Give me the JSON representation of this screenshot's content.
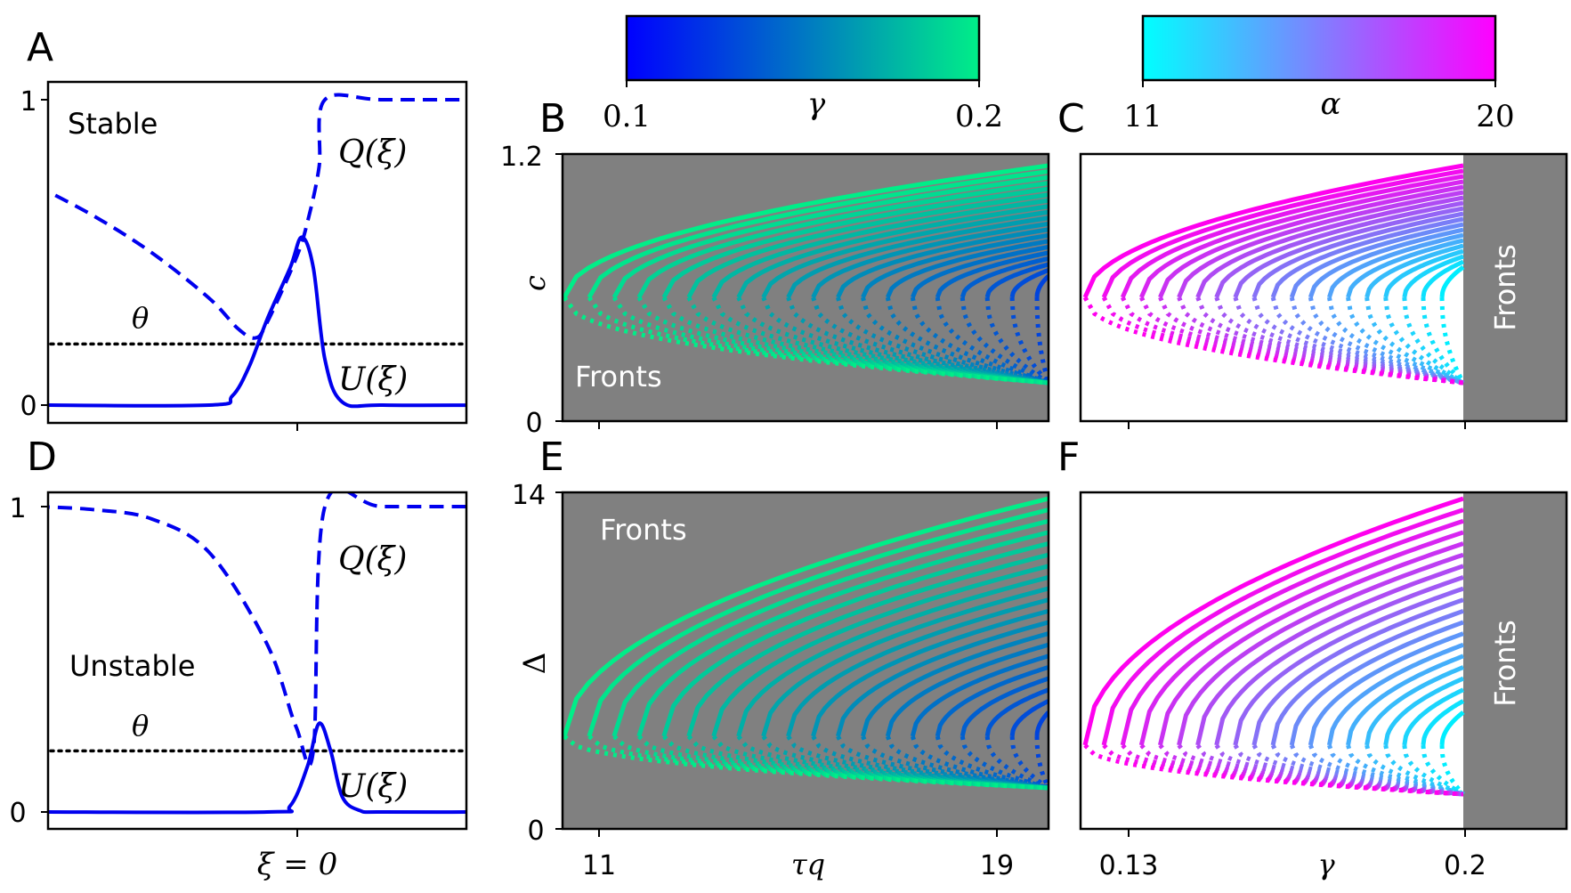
{
  "panel_letters": {
    "A": "A",
    "B": "B",
    "C": "C",
    "D": "D",
    "E": "E",
    "F": "F"
  },
  "colorbars": {
    "gamma": {
      "label": "γ",
      "min": "0.1",
      "max": "0.2",
      "colors": [
        "#0000ff",
        "#00ee88"
      ]
    },
    "alpha": {
      "label": "α",
      "min": "11",
      "max": "20",
      "colors": [
        "#00ffff",
        "#ff00ff"
      ]
    }
  },
  "chart_data": [
    {
      "id": "A",
      "type": "line",
      "annotation": "Stable",
      "ylim": [
        0,
        1
      ],
      "yticks": [
        "0",
        "1"
      ],
      "xticks": [
        "ξ = 0"
      ],
      "threshold": {
        "label": "θ",
        "y": 0.2
      },
      "series": [
        {
          "name": "Q(ξ)",
          "style": "dashed",
          "color": "#0000ee",
          "x": [
            -5,
            -4,
            -3,
            -2,
            -1.5,
            -1.2,
            -1,
            -0.5,
            -0.3,
            -0.1,
            0,
            1,
            3
          ],
          "y": [
            0.72,
            0.62,
            0.5,
            0.35,
            0.25,
            0.22,
            0.27,
            0.48,
            0.6,
            0.78,
            1.0,
            1.0,
            1.0
          ]
        },
        {
          "name": "U(ξ)",
          "style": "solid",
          "color": "#0000ee",
          "x": [
            -5,
            -2,
            -1.6,
            -1.3,
            -1,
            -0.6,
            -0.4,
            -0.2,
            0,
            0.3,
            1,
            3
          ],
          "y": [
            0,
            0,
            0.03,
            0.13,
            0.28,
            0.45,
            0.55,
            0.45,
            0.15,
            0.01,
            0,
            0
          ]
        }
      ]
    },
    {
      "id": "D",
      "type": "line",
      "annotation": "Unstable",
      "ylim": [
        0,
        1
      ],
      "yticks": [
        "0",
        "1"
      ],
      "xticks": [
        "ξ = 0"
      ],
      "threshold": {
        "label": "θ",
        "y": 0.2
      },
      "series": [
        {
          "name": "Q(ξ)",
          "style": "dashed",
          "color": "#0000ee",
          "x": [
            -5,
            -4,
            -3,
            -2,
            -1,
            -0.5,
            -0.2,
            0,
            1,
            3
          ],
          "y": [
            1.0,
            0.99,
            0.96,
            0.85,
            0.55,
            0.28,
            0.2,
            1.0,
            1.0,
            1.0
          ]
        },
        {
          "name": "U(ξ)",
          "style": "solid",
          "color": "#0000ee",
          "x": [
            -5,
            -1,
            -0.6,
            -0.3,
            -0.1,
            0.1,
            0.3,
            0.6,
            1,
            3
          ],
          "y": [
            0,
            0,
            0.02,
            0.15,
            0.29,
            0.2,
            0.05,
            0.005,
            0,
            0
          ]
        }
      ]
    },
    {
      "id": "B",
      "type": "line",
      "ylabel": "c",
      "ylim": [
        0,
        1.2
      ],
      "yticks": [
        "0",
        "1.2"
      ],
      "xlim": [
        10.1,
        20.1
      ],
      "region_label": "Fronts",
      "curves": "20 curves, γ from 0.1 (blue) to 0.2 (green); solid upper branch, dotted lower branch; nose at τq ≈ 10.1 (γ = 0.2) to 19.9 (γ = 0.1); upper branch reaches ≈ 1.15 at τq = 20.1; lower branch decays to ≈ 0.2"
    },
    {
      "id": "C",
      "type": "line",
      "ylim": [
        0,
        1.2
      ],
      "xlim": [
        0.12,
        0.22
      ],
      "region_label": "Fronts",
      "curves": "α from 11 (cyan) to 20 (magenta); solid upper, dotted lower branch; Fronts region for γ > 0.2"
    },
    {
      "id": "E",
      "type": "line",
      "ylabel": "Δ",
      "xlabel": "τq",
      "ylim": [
        0,
        14
      ],
      "yticks": [
        "0",
        "14"
      ],
      "xticks": [
        "11",
        "19"
      ],
      "xlim": [
        10.1,
        20.1
      ],
      "region_label": "Fronts",
      "curves": "γ from 0.1 (blue) to 0.2 (green); upper branch up to ≈ 14, lower branch ≈ 2"
    },
    {
      "id": "F",
      "type": "line",
      "xlabel": "γ",
      "xticks": [
        "0.13",
        "0.2"
      ],
      "xlim": [
        0.12,
        0.22
      ],
      "region_label": "Fronts",
      "curves": "α from 11 (cyan) to 20 (magenta); upper branch up to ≈ 14"
    }
  ]
}
